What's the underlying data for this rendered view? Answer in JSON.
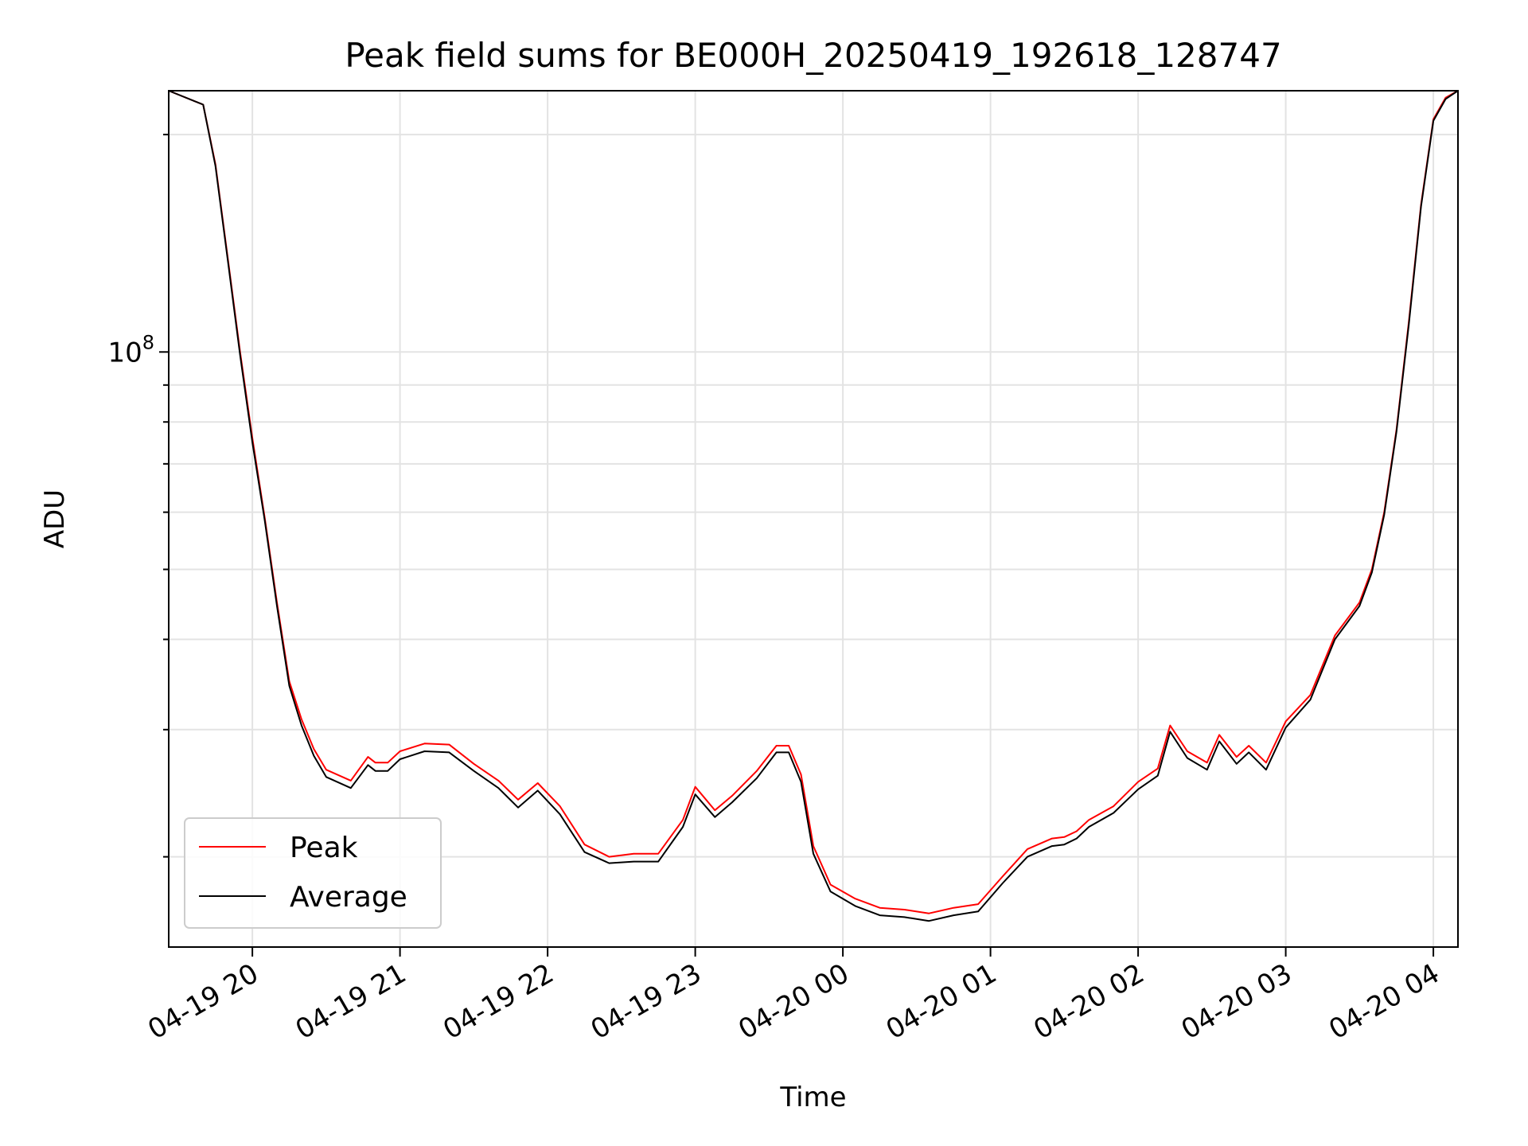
{
  "chart_data": {
    "type": "line",
    "title": "Peak field sums for BE000H_20250419_192618_128747",
    "xlabel": "Time",
    "ylabel": "ADU",
    "yscale": "log",
    "ylim": [
      15000000,
      230000000
    ],
    "xlim": [
      "2025-04-19 19:26",
      "2025-04-20 04:10"
    ],
    "x_ticks": [
      "04-19 20",
      "04-19 21",
      "04-19 22",
      "04-19 23",
      "04-20 00",
      "04-20 01",
      "04-20 02",
      "04-20 03",
      "04-20 04"
    ],
    "y_major_tick_label": {
      "base": "10",
      "exponent": "8"
    },
    "grid": true,
    "legend": {
      "position": "lower-left",
      "entries": [
        "Peak",
        "Average"
      ]
    },
    "x": [
      "2025-04-19 19:26",
      "2025-04-19 19:40",
      "2025-04-19 19:45",
      "2025-04-19 19:50",
      "2025-04-19 19:55",
      "2025-04-19 20:00",
      "2025-04-19 20:05",
      "2025-04-19 20:10",
      "2025-04-19 20:15",
      "2025-04-19 20:20",
      "2025-04-19 20:25",
      "2025-04-19 20:30",
      "2025-04-19 20:40",
      "2025-04-19 20:47",
      "2025-04-19 20:50",
      "2025-04-19 20:55",
      "2025-04-19 21:00",
      "2025-04-19 21:10",
      "2025-04-19 21:20",
      "2025-04-19 21:30",
      "2025-04-19 21:40",
      "2025-04-19 21:48",
      "2025-04-19 21:56",
      "2025-04-19 22:05",
      "2025-04-19 22:15",
      "2025-04-19 22:25",
      "2025-04-19 22:35",
      "2025-04-19 22:45",
      "2025-04-19 22:55",
      "2025-04-19 23:00",
      "2025-04-19 23:08",
      "2025-04-19 23:15",
      "2025-04-19 23:25",
      "2025-04-19 23:33",
      "2025-04-19 23:38",
      "2025-04-19 23:43",
      "2025-04-19 23:48",
      "2025-04-19 23:55",
      "2025-04-20 00:05",
      "2025-04-20 00:15",
      "2025-04-20 00:25",
      "2025-04-20 00:35",
      "2025-04-20 00:45",
      "2025-04-20 00:55",
      "2025-04-20 01:05",
      "2025-04-20 01:15",
      "2025-04-20 01:25",
      "2025-04-20 01:30",
      "2025-04-20 01:35",
      "2025-04-20 01:40",
      "2025-04-20 01:50",
      "2025-04-20 02:00",
      "2025-04-20 02:08",
      "2025-04-20 02:13",
      "2025-04-20 02:20",
      "2025-04-20 02:28",
      "2025-04-20 02:33",
      "2025-04-20 02:40",
      "2025-04-20 02:45",
      "2025-04-20 02:52",
      "2025-04-20 03:00",
      "2025-04-20 03:10",
      "2025-04-20 03:20",
      "2025-04-20 03:30",
      "2025-04-20 03:35",
      "2025-04-20 03:40",
      "2025-04-20 03:45",
      "2025-04-20 03:50",
      "2025-04-20 03:55",
      "2025-04-20 04:00",
      "2025-04-20 04:05",
      "2025-04-20 04:10"
    ],
    "series": [
      {
        "name": "Peak",
        "color": "#ff0000",
        "values": [
          230000000,
          220000000,
          182000000,
          135000000,
          100000000,
          76000000,
          59000000,
          45000000,
          35000000,
          31000000,
          28200000,
          26400000,
          25500000,
          27500000,
          27000000,
          27000000,
          28000000,
          28700000,
          28600000,
          26900000,
          25500000,
          24000000,
          25300000,
          23500000,
          20800000,
          20000000,
          20200000,
          20200000,
          22500000,
          25000000,
          23200000,
          24300000,
          26300000,
          28500000,
          28500000,
          26000000,
          20700000,
          18300000,
          17500000,
          17000000,
          16900000,
          16700000,
          17000000,
          17200000,
          18800000,
          20500000,
          21200000,
          21300000,
          21700000,
          22500000,
          23500000,
          25400000,
          26500000,
          30400000,
          28000000,
          27000000,
          29500000,
          27500000,
          28500000,
          27000000,
          30800000,
          33500000,
          40500000,
          45000000,
          50000000,
          60000000,
          78000000,
          110000000,
          160000000,
          210000000,
          225000000,
          230000000
        ]
      },
      {
        "name": "Average",
        "color": "#000000",
        "values": [
          230000000,
          220000000,
          181000000,
          134000000,
          99000000,
          75000000,
          58500000,
          44500000,
          34500000,
          30400000,
          27600000,
          25800000,
          24900000,
          26800000,
          26300000,
          26300000,
          27300000,
          28000000,
          27900000,
          26300000,
          24900000,
          23400000,
          24700000,
          22900000,
          20300000,
          19600000,
          19700000,
          19700000,
          22000000,
          24400000,
          22700000,
          23800000,
          25700000,
          27900000,
          27900000,
          25400000,
          20200000,
          17900000,
          17100000,
          16600000,
          16500000,
          16300000,
          16600000,
          16800000,
          18400000,
          20000000,
          20700000,
          20800000,
          21200000,
          22000000,
          23000000,
          24800000,
          25900000,
          29800000,
          27400000,
          26400000,
          28900000,
          26900000,
          27900000,
          26400000,
          30200000,
          33000000,
          40000000,
          44500000,
          49500000,
          59500000,
          77500000,
          109000000,
          159000000,
          209000000,
          224000000,
          230000000
        ]
      }
    ]
  }
}
